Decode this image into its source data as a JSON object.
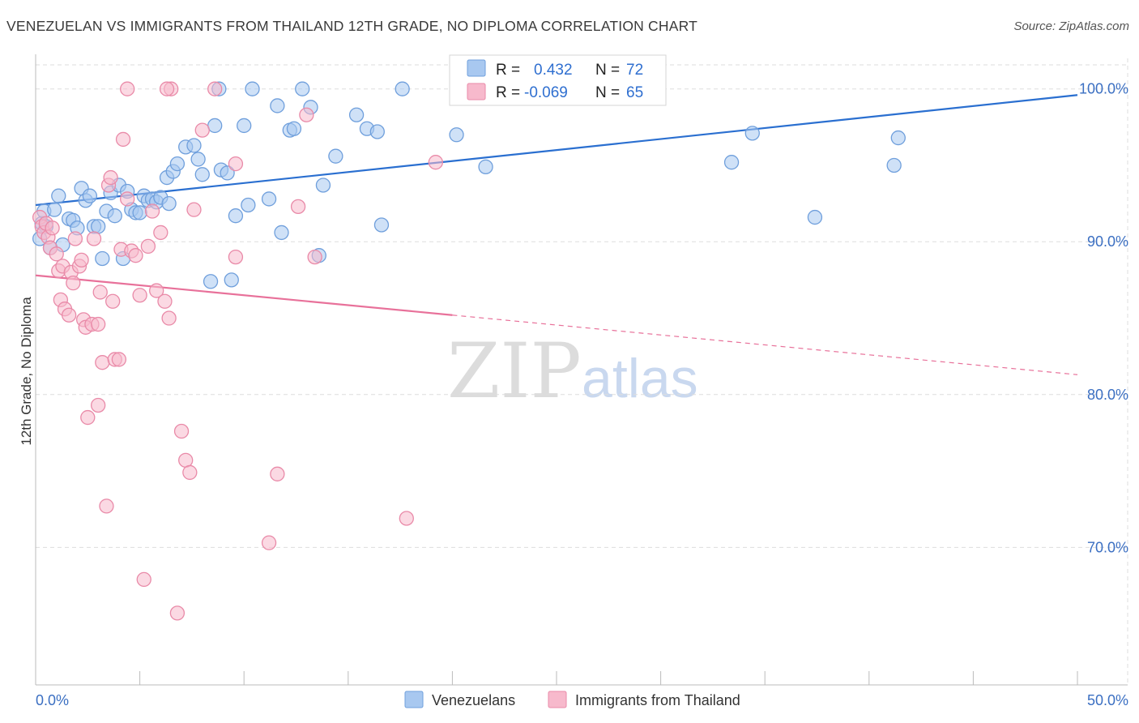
{
  "title": "VENEZUELAN VS IMMIGRANTS FROM THAILAND 12TH GRADE, NO DIPLOMA CORRELATION CHART",
  "source": "Source: ZipAtlas.com",
  "watermark": {
    "zip": "ZIP",
    "atlas": "atlas"
  },
  "colors": {
    "blue_fill": "#a8c8f0",
    "blue_stroke": "#6f9fdc",
    "blue_line": "#2a6fd0",
    "pink_fill": "#f7b9cc",
    "pink_stroke": "#e98aa8",
    "pink_line": "#e8719a",
    "axis_label": "#3b6fc2",
    "grid": "#dddddd"
  },
  "legend_box": {
    "rows": [
      {
        "r_label": "R =",
        "r_value": "0.432",
        "n_label": "N =",
        "n_value": "72"
      },
      {
        "r_label": "R =",
        "r_value": "-0.069",
        "n_label": "N =",
        "n_value": "65"
      }
    ]
  },
  "chart_data": {
    "type": "scatter",
    "title": "VENEZUELAN VS IMMIGRANTS FROM THAILAND 12TH GRADE, NO DIPLOMA CORRELATION CHART",
    "xlabel": "",
    "ylabel": "12th Grade, No Diploma",
    "xlim": [
      0,
      50
    ],
    "ylim": [
      61,
      102
    ],
    "x_tick_labels": [
      "0.0%",
      "50.0%"
    ],
    "y_ticks": [
      70,
      80,
      90,
      100
    ],
    "y_tick_labels": [
      "70.0%",
      "80.0%",
      "90.0%",
      "100.0%"
    ],
    "grid": true,
    "legend_position": "bottom",
    "series": [
      {
        "name": "Venezuelans",
        "trend": {
          "x": [
            0,
            50
          ],
          "y": [
            92.4,
            99.6
          ],
          "dashed_from": null
        },
        "points": [
          [
            0.2,
            90.2
          ],
          [
            0.3,
            91.2
          ],
          [
            0.4,
            92.0
          ],
          [
            0.5,
            91.0
          ],
          [
            0.7,
            89.6
          ],
          [
            0.9,
            92.1
          ],
          [
            1.1,
            93.0
          ],
          [
            1.3,
            89.8
          ],
          [
            1.6,
            91.5
          ],
          [
            1.8,
            91.4
          ],
          [
            2.0,
            90.9
          ],
          [
            2.2,
            93.5
          ],
          [
            2.4,
            92.7
          ],
          [
            2.6,
            93.0
          ],
          [
            2.8,
            91.0
          ],
          [
            3.0,
            91.0
          ],
          [
            3.2,
            88.9
          ],
          [
            3.4,
            92.0
          ],
          [
            3.6,
            93.2
          ],
          [
            3.8,
            91.7
          ],
          [
            4.0,
            93.7
          ],
          [
            4.2,
            88.9
          ],
          [
            4.4,
            93.3
          ],
          [
            4.6,
            92.1
          ],
          [
            4.8,
            91.9
          ],
          [
            5.0,
            91.9
          ],
          [
            5.2,
            93.0
          ],
          [
            5.4,
            92.7
          ],
          [
            5.6,
            92.8
          ],
          [
            5.8,
            92.6
          ],
          [
            6.0,
            92.9
          ],
          [
            6.4,
            92.5
          ],
          [
            6.3,
            94.2
          ],
          [
            6.6,
            94.6
          ],
          [
            6.8,
            95.1
          ],
          [
            7.2,
            96.2
          ],
          [
            7.6,
            96.3
          ],
          [
            7.8,
            95.4
          ],
          [
            8.0,
            94.4
          ],
          [
            8.4,
            87.4
          ],
          [
            8.6,
            97.6
          ],
          [
            8.8,
            100.0
          ],
          [
            8.9,
            94.7
          ],
          [
            9.2,
            94.5
          ],
          [
            9.4,
            87.5
          ],
          [
            9.6,
            91.7
          ],
          [
            10.4,
            100.0
          ],
          [
            10.0,
            97.6
          ],
          [
            10.2,
            92.4
          ],
          [
            11.2,
            92.8
          ],
          [
            11.6,
            98.9
          ],
          [
            11.8,
            90.6
          ],
          [
            12.2,
            97.3
          ],
          [
            12.4,
            97.4
          ],
          [
            12.8,
            100.0
          ],
          [
            13.2,
            98.8
          ],
          [
            13.6,
            89.1
          ],
          [
            13.8,
            93.7
          ],
          [
            14.4,
            95.6
          ],
          [
            15.4,
            98.3
          ],
          [
            15.9,
            97.4
          ],
          [
            16.4,
            97.2
          ],
          [
            16.6,
            91.1
          ],
          [
            17.6,
            100.0
          ],
          [
            20.2,
            97.0
          ],
          [
            21.6,
            94.9
          ],
          [
            23.0,
            100.0
          ],
          [
            33.4,
            95.2
          ],
          [
            34.4,
            97.1
          ],
          [
            37.4,
            91.6
          ],
          [
            41.2,
            95.0
          ],
          [
            41.4,
            96.8
          ]
        ]
      },
      {
        "name": "Immigrants from Thailand",
        "trend": {
          "x": [
            0,
            50
          ],
          "y": [
            87.8,
            81.3
          ],
          "dashed_from": 20.0
        },
        "points": [
          [
            0.2,
            91.6
          ],
          [
            0.3,
            91.0
          ],
          [
            0.4,
            90.6
          ],
          [
            0.5,
            91.2
          ],
          [
            0.6,
            90.3
          ],
          [
            0.7,
            89.6
          ],
          [
            0.8,
            90.9
          ],
          [
            1.0,
            89.2
          ],
          [
            1.1,
            88.1
          ],
          [
            1.2,
            86.2
          ],
          [
            1.3,
            88.4
          ],
          [
            1.4,
            85.6
          ],
          [
            1.6,
            85.2
          ],
          [
            1.7,
            88.0
          ],
          [
            1.8,
            87.3
          ],
          [
            1.9,
            90.2
          ],
          [
            2.1,
            88.4
          ],
          [
            2.2,
            88.8
          ],
          [
            2.3,
            84.9
          ],
          [
            2.4,
            84.4
          ],
          [
            2.5,
            78.5
          ],
          [
            2.7,
            84.6
          ],
          [
            2.8,
            90.2
          ],
          [
            3.0,
            84.6
          ],
          [
            3.0,
            79.3
          ],
          [
            3.1,
            86.7
          ],
          [
            3.2,
            82.1
          ],
          [
            3.4,
            72.7
          ],
          [
            3.5,
            93.7
          ],
          [
            3.6,
            94.2
          ],
          [
            3.7,
            86.1
          ],
          [
            3.8,
            82.3
          ],
          [
            4.0,
            82.3
          ],
          [
            4.1,
            89.5
          ],
          [
            4.2,
            96.7
          ],
          [
            4.4,
            92.8
          ],
          [
            4.6,
            89.4
          ],
          [
            4.8,
            89.1
          ],
          [
            5.0,
            86.5
          ],
          [
            5.2,
            67.9
          ],
          [
            5.4,
            89.7
          ],
          [
            5.6,
            92.0
          ],
          [
            5.8,
            86.8
          ],
          [
            6.0,
            90.6
          ],
          [
            6.2,
            86.1
          ],
          [
            6.4,
            85.0
          ],
          [
            6.8,
            65.7
          ],
          [
            7.0,
            77.6
          ],
          [
            7.2,
            75.7
          ],
          [
            7.4,
            74.9
          ],
          [
            6.5,
            100.0
          ],
          [
            7.6,
            92.1
          ],
          [
            8.0,
            97.3
          ],
          [
            8.6,
            100.0
          ],
          [
            9.6,
            89.0
          ],
          [
            9.6,
            95.1
          ],
          [
            11.2,
            70.3
          ],
          [
            11.6,
            74.8
          ],
          [
            12.6,
            92.3
          ],
          [
            13.0,
            98.3
          ],
          [
            13.4,
            89.0
          ],
          [
            17.8,
            71.9
          ],
          [
            19.2,
            95.2
          ],
          [
            4.4,
            100.0
          ],
          [
            6.3,
            100.0
          ]
        ]
      }
    ]
  }
}
